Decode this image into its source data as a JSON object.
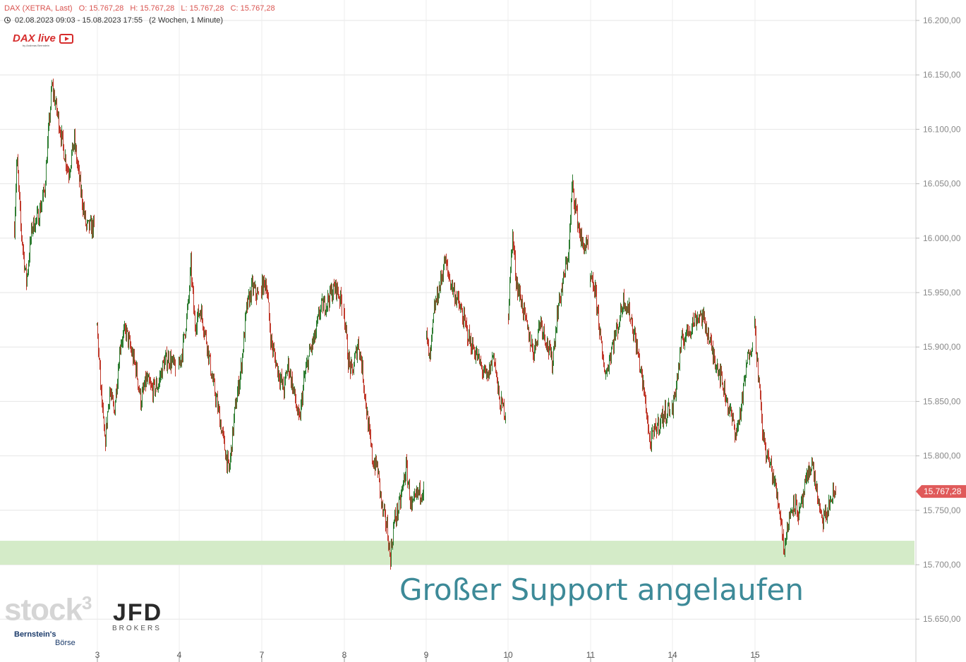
{
  "header": {
    "instrument": "DAX (XETRA, Last)",
    "open": "O: 15.767,28",
    "high": "H: 15.767,28",
    "low": "L: 15.767,28",
    "close": "C: 15.767,28",
    "range": "02.08.2023 09:03 - 15.08.2023 17:55",
    "period": "(2 Wochen, 1 Minute)"
  },
  "logos": {
    "dax_live": "DAX live",
    "dax_live_sub": "by Andreas Bernstein",
    "stock3": "stock",
    "stock3_sup": "3",
    "jfd": "JFD",
    "jfd_sub": "BROKERS",
    "bernstein": "Bernstein's",
    "boerse": "Börse"
  },
  "annotation": "Großer Support angelaufen",
  "colors": {
    "up": "#2e7d32",
    "down": "#c0392b",
    "support_zone": "#d4ebc8",
    "price_tag": "#e05a5a",
    "annotation": "#3d8a98"
  },
  "chart_data": {
    "type": "candlestick",
    "x_type": "trading-day",
    "xticks": [
      "3",
      "4",
      "7",
      "8",
      "9",
      "10",
      "11",
      "14",
      "15"
    ],
    "ylim": [
      15620,
      16220
    ],
    "y_ticks": [
      15650,
      15700,
      15750,
      15800,
      15850,
      15900,
      15950,
      16000,
      16050,
      16100,
      16150,
      16200
    ],
    "y_tick_labels": [
      "15.650,00",
      "15.700,00",
      "15.750,00",
      "15.800,00",
      "15.850,00",
      "15.900,00",
      "15.950,00",
      "16.000,00",
      "16.050,00",
      "16.100,00",
      "16.150,00",
      "16.200,00"
    ],
    "grid": true,
    "last_price": 15767.28,
    "last_price_label": "15.767,28",
    "support_zone": [
      15700,
      15722
    ],
    "sessions": [
      {
        "day": "2",
        "path": [
          [
            0,
            16010
          ],
          [
            0.03,
            16075
          ],
          [
            0.08,
            16010
          ],
          [
            0.15,
            15960
          ],
          [
            0.22,
            16010
          ],
          [
            0.3,
            16020
          ],
          [
            0.38,
            16045
          ],
          [
            0.42,
            16090
          ],
          [
            0.47,
            16140
          ],
          [
            0.55,
            16110
          ],
          [
            0.62,
            16080
          ],
          [
            0.68,
            16060
          ],
          [
            0.75,
            16090
          ],
          [
            0.82,
            16050
          ],
          [
            0.9,
            16010
          ],
          [
            1,
            16010
          ]
        ]
      },
      {
        "day": "3",
        "path": [
          [
            0,
            15920
          ],
          [
            0.05,
            15860
          ],
          [
            0.1,
            15810
          ],
          [
            0.16,
            15860
          ],
          [
            0.22,
            15840
          ],
          [
            0.3,
            15905
          ],
          [
            0.37,
            15915
          ],
          [
            0.44,
            15895
          ],
          [
            0.5,
            15880
          ],
          [
            0.56,
            15850
          ],
          [
            0.63,
            15870
          ],
          [
            0.7,
            15860
          ],
          [
            0.78,
            15865
          ],
          [
            0.85,
            15885
          ],
          [
            0.92,
            15890
          ],
          [
            1,
            15880
          ]
        ]
      },
      {
        "day": "4",
        "path": [
          [
            0,
            15880
          ],
          [
            0.05,
            15900
          ],
          [
            0.12,
            15940
          ],
          [
            0.15,
            15975
          ],
          [
            0.2,
            15920
          ],
          [
            0.27,
            15935
          ],
          [
            0.35,
            15905
          ],
          [
            0.42,
            15870
          ],
          [
            0.5,
            15840
          ],
          [
            0.58,
            15805
          ],
          [
            0.63,
            15785
          ],
          [
            0.7,
            15840
          ],
          [
            0.78,
            15880
          ],
          [
            0.85,
            15935
          ],
          [
            0.92,
            15955
          ],
          [
            1,
            15945
          ]
        ]
      },
      {
        "day": "7",
        "path": [
          [
            0,
            15955
          ],
          [
            0.06,
            15960
          ],
          [
            0.12,
            15905
          ],
          [
            0.2,
            15880
          ],
          [
            0.28,
            15860
          ],
          [
            0.33,
            15885
          ],
          [
            0.4,
            15860
          ],
          [
            0.47,
            15830
          ],
          [
            0.53,
            15870
          ],
          [
            0.6,
            15895
          ],
          [
            0.67,
            15910
          ],
          [
            0.73,
            15935
          ],
          [
            0.8,
            15940
          ],
          [
            0.87,
            15950
          ],
          [
            0.93,
            15955
          ],
          [
            1,
            15940
          ]
        ]
      },
      {
        "day": "8",
        "path": [
          [
            0,
            15935
          ],
          [
            0.05,
            15890
          ],
          [
            0.1,
            15875
          ],
          [
            0.18,
            15905
          ],
          [
            0.23,
            15880
          ],
          [
            0.3,
            15830
          ],
          [
            0.36,
            15795
          ],
          [
            0.42,
            15790
          ],
          [
            0.48,
            15750
          ],
          [
            0.54,
            15735
          ],
          [
            0.58,
            15705
          ],
          [
            0.63,
            15740
          ],
          [
            0.7,
            15755
          ],
          [
            0.78,
            15790
          ],
          [
            0.85,
            15750
          ],
          [
            0.92,
            15765
          ],
          [
            1,
            15770
          ]
        ]
      },
      {
        "day": "9",
        "path": [
          [
            0,
            15910
          ],
          [
            0.04,
            15885
          ],
          [
            0.1,
            15935
          ],
          [
            0.18,
            15960
          ],
          [
            0.23,
            15980
          ],
          [
            0.3,
            15960
          ],
          [
            0.38,
            15945
          ],
          [
            0.47,
            15925
          ],
          [
            0.55,
            15905
          ],
          [
            0.62,
            15895
          ],
          [
            0.7,
            15880
          ],
          [
            0.77,
            15870
          ],
          [
            0.85,
            15895
          ],
          [
            0.92,
            15850
          ],
          [
            1,
            15840
          ]
        ]
      },
      {
        "day": "10",
        "path": [
          [
            0,
            15930
          ],
          [
            0.05,
            16005
          ],
          [
            0.1,
            15960
          ],
          [
            0.17,
            15940
          ],
          [
            0.24,
            15915
          ],
          [
            0.32,
            15895
          ],
          [
            0.4,
            15925
          ],
          [
            0.48,
            15905
          ],
          [
            0.55,
            15885
          ],
          [
            0.62,
            15935
          ],
          [
            0.7,
            15965
          ],
          [
            0.76,
            15990
          ],
          [
            0.8,
            16050
          ],
          [
            0.86,
            16020
          ],
          [
            0.92,
            15995
          ],
          [
            1,
            15990
          ]
        ]
      },
      {
        "day": "11",
        "path": [
          [
            0,
            15960
          ],
          [
            0.05,
            15955
          ],
          [
            0.1,
            15930
          ],
          [
            0.15,
            15890
          ],
          [
            0.2,
            15875
          ],
          [
            0.27,
            15900
          ],
          [
            0.35,
            15920
          ],
          [
            0.42,
            15945
          ],
          [
            0.5,
            15930
          ],
          [
            0.57,
            15905
          ],
          [
            0.63,
            15880
          ],
          [
            0.7,
            15845
          ],
          [
            0.75,
            15810
          ],
          [
            0.82,
            15825
          ],
          [
            0.9,
            15835
          ],
          [
            1,
            15845
          ]
        ]
      },
      {
        "day": "14",
        "path": [
          [
            0,
            15840
          ],
          [
            0.07,
            15875
          ],
          [
            0.12,
            15905
          ],
          [
            0.2,
            15915
          ],
          [
            0.28,
            15925
          ],
          [
            0.35,
            15930
          ],
          [
            0.42,
            15920
          ],
          [
            0.5,
            15895
          ],
          [
            0.58,
            15880
          ],
          [
            0.65,
            15860
          ],
          [
            0.72,
            15840
          ],
          [
            0.8,
            15820
          ],
          [
            0.87,
            15850
          ],
          [
            0.93,
            15885
          ],
          [
            0.97,
            15900
          ],
          [
            1,
            15905
          ]
        ]
      },
      {
        "day": "15",
        "path": [
          [
            0,
            15920
          ],
          [
            0.05,
            15870
          ],
          [
            0.1,
            15820
          ],
          [
            0.15,
            15800
          ],
          [
            0.2,
            15790
          ],
          [
            0.26,
            15770
          ],
          [
            0.32,
            15745
          ],
          [
            0.36,
            15715
          ],
          [
            0.42,
            15740
          ],
          [
            0.48,
            15760
          ],
          [
            0.55,
            15745
          ],
          [
            0.62,
            15770
          ],
          [
            0.7,
            15795
          ],
          [
            0.75,
            15775
          ],
          [
            0.82,
            15740
          ],
          [
            0.88,
            15745
          ],
          [
            0.94,
            15760
          ],
          [
            1,
            15767.28
          ]
        ]
      }
    ]
  }
}
